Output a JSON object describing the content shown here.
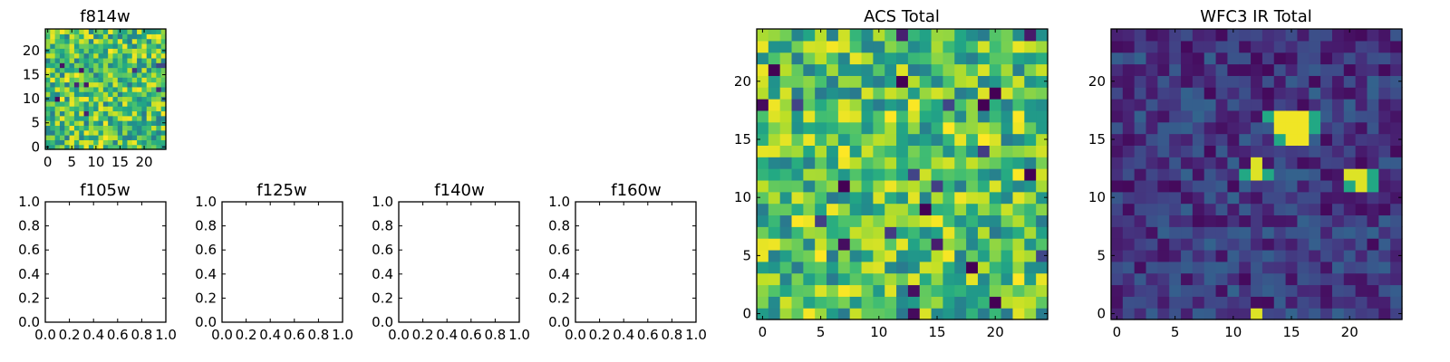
{
  "figure": {
    "background": "#ffffff",
    "colormap": "viridis"
  },
  "chart_data": [
    {
      "type": "heatmap",
      "title": "f814w",
      "grid_size": 25,
      "colormap": "viridis",
      "xlim": [
        -0.5,
        24.5
      ],
      "ylim": [
        -0.5,
        24.5
      ],
      "xticks": [
        "0",
        "5",
        "10",
        "15",
        "20"
      ],
      "yticks": [
        "0",
        "5",
        "10",
        "15",
        "20"
      ],
      "content": "noise",
      "seed": 11,
      "low_level": 0.4,
      "high_level": 1.0
    },
    {
      "type": "heatmap",
      "title": "f105w",
      "empty": true,
      "xlim": [
        0,
        1
      ],
      "ylim": [
        0,
        1
      ],
      "xticks": [
        "0.0",
        "0.2",
        "0.4",
        "0.6",
        "0.8",
        "1.0"
      ],
      "yticks": [
        "0.0",
        "0.2",
        "0.4",
        "0.6",
        "0.8",
        "1.0"
      ]
    },
    {
      "type": "heatmap",
      "title": "f125w",
      "empty": true,
      "xlim": [
        0,
        1
      ],
      "ylim": [
        0,
        1
      ],
      "xticks": [
        "0.0",
        "0.2",
        "0.4",
        "0.6",
        "0.8",
        "1.0"
      ],
      "yticks": [
        "0.0",
        "0.2",
        "0.4",
        "0.6",
        "0.8",
        "1.0"
      ]
    },
    {
      "type": "heatmap",
      "title": "f140w",
      "empty": true,
      "xlim": [
        0,
        1
      ],
      "ylim": [
        0,
        1
      ],
      "xticks": [
        "0.0",
        "0.2",
        "0.4",
        "0.6",
        "0.8",
        "1.0"
      ],
      "yticks": [
        "0.0",
        "0.2",
        "0.4",
        "0.6",
        "0.8",
        "1.0"
      ]
    },
    {
      "type": "heatmap",
      "title": "f160w",
      "empty": true,
      "xlim": [
        0,
        1
      ],
      "ylim": [
        0,
        1
      ],
      "xticks": [
        "0.0",
        "0.2",
        "0.4",
        "0.6",
        "0.8",
        "1.0"
      ],
      "yticks": [
        "0.0",
        "0.2",
        "0.4",
        "0.6",
        "0.8",
        "1.0"
      ]
    },
    {
      "type": "heatmap",
      "title": "ACS Total",
      "grid_size": 25,
      "colormap": "viridis",
      "xlim": [
        -0.5,
        24.5
      ],
      "ylim": [
        -0.5,
        24.5
      ],
      "xticks": [
        "0",
        "5",
        "10",
        "15",
        "20"
      ],
      "yticks": [
        "0",
        "5",
        "10",
        "15",
        "20"
      ],
      "content": "noise",
      "seed": 29,
      "low_level": 0.4,
      "high_level": 1.0,
      "dark_pixels": [
        [
          1,
          21
        ],
        [
          12,
          20
        ],
        [
          19,
          18
        ],
        [
          20,
          19
        ],
        [
          7,
          11
        ],
        [
          14,
          9
        ],
        [
          20,
          1
        ],
        [
          18,
          4
        ],
        [
          23,
          12
        ]
      ],
      "bright_pixels": [
        [
          22,
          12
        ],
        [
          19,
          15
        ],
        [
          5,
          5
        ],
        [
          7,
          14
        ],
        [
          3,
          8
        ],
        [
          22,
          3
        ],
        [
          11,
          17
        ],
        [
          16,
          16
        ]
      ]
    },
    {
      "type": "heatmap",
      "title": "WFC3 IR Total",
      "grid_size": 25,
      "colormap": "viridis",
      "xlim": [
        -0.5,
        24.5
      ],
      "ylim": [
        -0.5,
        24.5
      ],
      "xticks": [
        "0",
        "5",
        "10",
        "15",
        "20"
      ],
      "yticks": [
        "0",
        "5",
        "10",
        "15",
        "20"
      ],
      "content": "sources",
      "seed": 53,
      "low_level": 0.02,
      "high_level": 0.32,
      "sources": [
        {
          "pixels": [
            [
              14,
              17
            ],
            [
              15,
              17
            ],
            [
              16,
              17
            ],
            [
              15,
              16
            ],
            [
              16,
              16
            ],
            [
              14,
              16
            ],
            [
              15,
              15
            ],
            [
              16,
              15
            ]
          ],
          "value": 0.98
        },
        {
          "pixels": [
            [
              12,
              12
            ],
            [
              12,
              13
            ]
          ],
          "value": 0.95
        },
        {
          "pixels": [
            [
              21,
              11
            ],
            [
              21,
              12
            ],
            [
              20,
              12
            ]
          ],
          "value": 0.95
        },
        {
          "pixels": [
            [
              12,
              0
            ]
          ],
          "value": 0.95
        }
      ],
      "halo_pixels": [
        [
          14,
          15
        ],
        [
          17,
          17
        ],
        [
          17,
          16
        ],
        [
          13,
          17
        ],
        [
          11,
          12
        ],
        [
          13,
          12
        ],
        [
          20,
          11
        ],
        [
          22,
          12
        ],
        [
          22,
          11
        ]
      ],
      "halo_value": 0.6
    }
  ]
}
